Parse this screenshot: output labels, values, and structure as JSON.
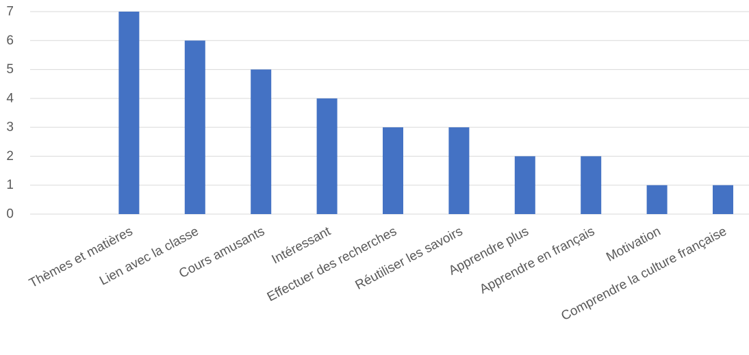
{
  "chart_data": {
    "type": "bar",
    "title": "",
    "xlabel": "",
    "ylabel": "",
    "categories": [
      "Thèmes et matières",
      "Lien avec la classe",
      "Cours amusants",
      "Intéressant",
      "Effectuer des recherches",
      "Réutiliser les savoirs",
      "Apprendre plus",
      "Apprendre en français",
      "Motivation",
      "Comprendre la culture française"
    ],
    "values": [
      7,
      6,
      5,
      4,
      3,
      3,
      2,
      2,
      1,
      1
    ],
    "ylim": [
      0,
      7
    ],
    "yticks": [
      0,
      1,
      2,
      3,
      4,
      5,
      6,
      7
    ],
    "grid": true,
    "legend": "none",
    "colors": {
      "bar": "#4472C4",
      "grid": "#D9D9D9",
      "text": "#595959"
    }
  }
}
